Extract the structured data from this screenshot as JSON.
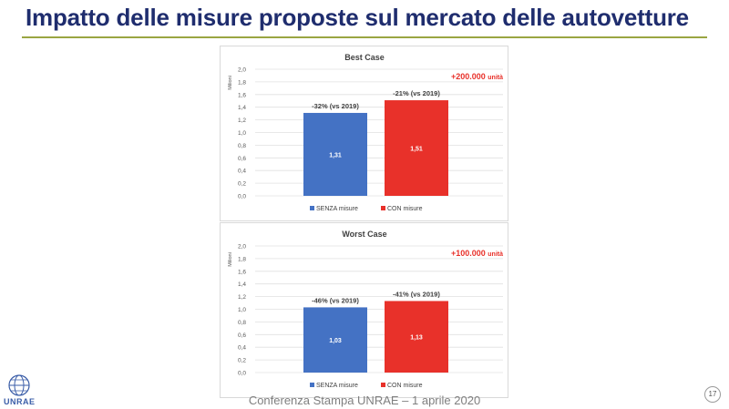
{
  "slide": {
    "title": "Impatto delle misure proposte sul mercato delle autovetture",
    "footer": "Conferenza Stampa UNRAE – 1 aprile 2020",
    "page_number": "17",
    "logo_text": "UNRAE"
  },
  "colors": {
    "title": "#1f2d6e",
    "rule": "#9aa542",
    "senza": "#4472c4",
    "con": "#e8312a",
    "highlight": "#e8312a"
  },
  "chart_data": [
    {
      "type": "bar",
      "title": "Best Case",
      "ylabel": "Milioni",
      "ylim": [
        0,
        2.0
      ],
      "yticks": [
        "0,0",
        "0,2",
        "0,4",
        "0,6",
        "0,8",
        "1,0",
        "1,2",
        "1,4",
        "1,6",
        "1,8",
        "2,0"
      ],
      "highlight": "+200.000",
      "highlight_unit": "unità",
      "categories": [
        "SENZA misure",
        "CON misure"
      ],
      "values": [
        1.31,
        1.51
      ],
      "value_labels": [
        "1,31",
        "1,51"
      ],
      "top_labels": [
        "-32% (vs 2019)",
        "-21% (vs 2019)"
      ],
      "legend": [
        "SENZA misure",
        "CON misure"
      ],
      "legend_position": "bottom",
      "grid": true
    },
    {
      "type": "bar",
      "title": "Worst Case",
      "ylabel": "Milioni",
      "ylim": [
        0,
        2.0
      ],
      "yticks": [
        "0,0",
        "0,2",
        "0,4",
        "0,6",
        "0,8",
        "1,0",
        "1,2",
        "1,4",
        "1,6",
        "1,8",
        "2,0"
      ],
      "highlight": "+100.000",
      "highlight_unit": "unità",
      "categories": [
        "SENZA misure",
        "CON misure"
      ],
      "values": [
        1.03,
        1.13
      ],
      "value_labels": [
        "1,03",
        "1,13"
      ],
      "top_labels": [
        "-46% (vs 2019)",
        "-41% (vs 2019)"
      ],
      "legend": [
        "SENZA misure",
        "CON misure"
      ],
      "legend_position": "bottom",
      "grid": true
    }
  ]
}
